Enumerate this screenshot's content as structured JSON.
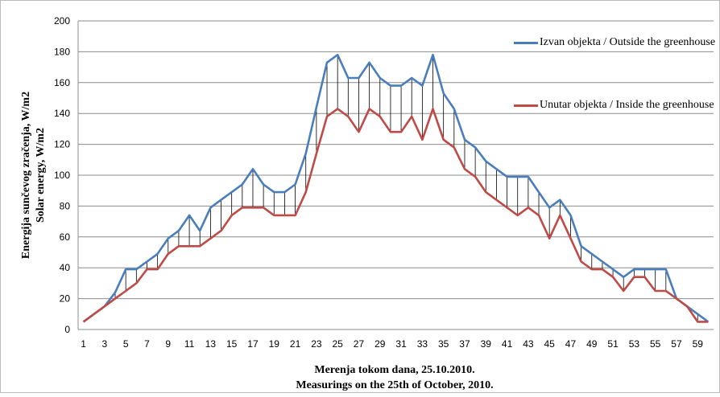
{
  "chart_data": {
    "type": "line",
    "x_label": [
      "Merenja tokom dana, 25.10.2010.",
      "Measurings on the 25th of October, 2010."
    ],
    "y_label": [
      "Energija sunčevog zračenja, W/m2",
      "Solar energy, W/m2"
    ],
    "categories": [
      "1",
      null,
      "3",
      null,
      "5",
      null,
      "7",
      null,
      "9",
      null,
      "11",
      null,
      "13",
      null,
      "15",
      null,
      "17",
      null,
      "19",
      null,
      "21",
      null,
      "23",
      null,
      "25",
      null,
      "27",
      null,
      "29",
      null,
      "31",
      null,
      "33",
      null,
      "35",
      null,
      "37",
      null,
      "39",
      null,
      "41",
      null,
      "43",
      null,
      "45",
      null,
      "47",
      null,
      "49",
      null,
      "51",
      null,
      "53",
      null,
      "55",
      null,
      "57",
      null,
      "59",
      null
    ],
    "series": [
      {
        "name": "Izvan objekta / Outside the greenhouse",
        "color": "#4a7ebb",
        "values": [
          5,
          10,
          15,
          24,
          39,
          39,
          44,
          49,
          59,
          64,
          74,
          64,
          79,
          84,
          89,
          94,
          104,
          94,
          89,
          89,
          94,
          114,
          144,
          173,
          178,
          163,
          163,
          173,
          163,
          158,
          158,
          163,
          158,
          178,
          153,
          143,
          123,
          118,
          109,
          104,
          99,
          99,
          99,
          89,
          79,
          84,
          74,
          54,
          49,
          44,
          39,
          34,
          39,
          39,
          39,
          39,
          20,
          15,
          10,
          5
        ]
      },
      {
        "name": "Unutar objekta / Inside the greenhouse",
        "color": "#be4b48",
        "values": [
          5,
          10,
          15,
          20,
          25,
          30,
          39,
          39,
          49,
          54,
          54,
          54,
          59,
          64,
          74,
          79,
          79,
          79,
          74,
          74,
          74,
          89,
          114,
          138,
          143,
          138,
          128,
          143,
          138,
          128,
          128,
          138,
          123,
          143,
          123,
          118,
          104,
          99,
          89,
          84,
          79,
          74,
          79,
          74,
          59,
          74,
          59,
          44,
          39,
          39,
          34,
          25,
          34,
          34,
          25,
          25,
          20,
          15,
          5,
          5
        ]
      }
    ],
    "ylim": [
      0,
      200
    ],
    "yticks": [
      0,
      20,
      40,
      60,
      80,
      100,
      120,
      140,
      160,
      180,
      200
    ],
    "grid": true,
    "hi_lo_lines": true,
    "legend_position": "top-right"
  }
}
